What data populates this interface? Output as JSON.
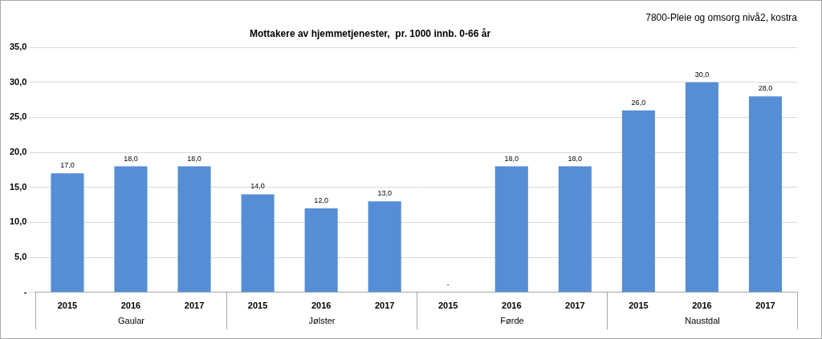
{
  "chart_data": {
    "type": "bar",
    "title": "Mottakere av hjemmetjenester,  pr. 1000 innb. 0-66 år",
    "subtitle": "7800-Pleie og omsorg nivå2, kostra",
    "groups": [
      {
        "name": "Gaular",
        "categories": [
          "2015",
          "2016",
          "2017"
        ],
        "values": [
          17,
          18,
          18
        ],
        "value_labels": [
          "17,0",
          "18,0",
          "18,0"
        ]
      },
      {
        "name": "Jølster",
        "categories": [
          "2015",
          "2016",
          "2017"
        ],
        "values": [
          14,
          12,
          13
        ],
        "value_labels": [
          "14,0",
          "12,0",
          "13,0"
        ]
      },
      {
        "name": "Førde",
        "categories": [
          "2015",
          "2016",
          "2017"
        ],
        "values": [
          null,
          18,
          18
        ],
        "value_labels": [
          "-",
          "18,0",
          "18,0"
        ]
      },
      {
        "name": "Naustdal",
        "categories": [
          "2015",
          "2016",
          "2017"
        ],
        "values": [
          26,
          30,
          28
        ],
        "value_labels": [
          "26,0",
          "30,0",
          "28,0"
        ]
      }
    ],
    "color": "#558ed5",
    "ylim": [
      0,
      35
    ],
    "yticks": [
      {
        "value": 0,
        "label": "-"
      },
      {
        "value": 5,
        "label": "5,0"
      },
      {
        "value": 10,
        "label": "10,0"
      },
      {
        "value": 15,
        "label": "15,0"
      },
      {
        "value": 20,
        "label": "20,0"
      },
      {
        "value": 25,
        "label": "25,0"
      },
      {
        "value": 30,
        "label": "30,0"
      },
      {
        "value": 35,
        "label": "35,0"
      }
    ],
    "grid": true,
    "data_labels": true
  }
}
